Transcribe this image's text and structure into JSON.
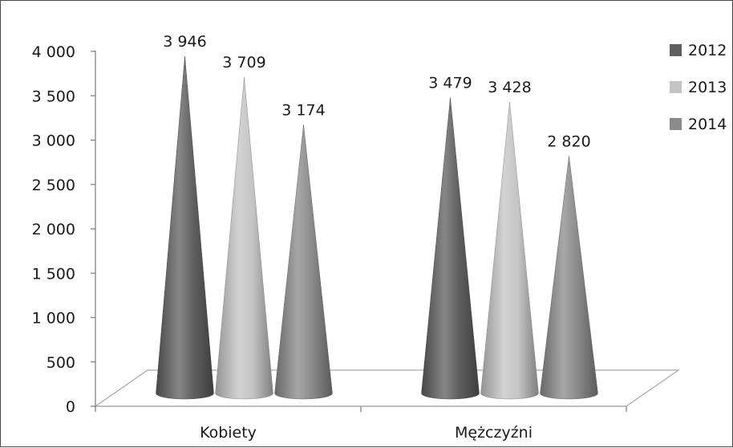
{
  "chart_data": {
    "type": "bar",
    "shape": "cone",
    "title": "",
    "xlabel": "",
    "ylabel": "",
    "categories": [
      "Kobiety",
      "Mężczyźni"
    ],
    "series": [
      {
        "name": "2012",
        "values": [
          3946,
          3479
        ],
        "color": "#5f5f5f"
      },
      {
        "name": "2013",
        "values": [
          3709,
          3428
        ],
        "color": "#c4c4c4"
      },
      {
        "name": "2014",
        "values": [
          3174,
          2820
        ],
        "color": "#8a8a8a"
      }
    ],
    "value_labels": [
      [
        "3 946",
        "3 479"
      ],
      [
        "3 709",
        "3 428"
      ],
      [
        "3 174",
        "2 820"
      ]
    ],
    "ylim": [
      0,
      4000
    ],
    "y_ticks": [
      0,
      500,
      1000,
      1500,
      2000,
      2500,
      3000,
      3500,
      4000
    ],
    "y_tick_labels": [
      "0",
      "500",
      "1 000",
      "1 500",
      "2 000",
      "2 500",
      "3 000",
      "3 500",
      "4 000"
    ],
    "legend_position": "right",
    "grid": false
  }
}
